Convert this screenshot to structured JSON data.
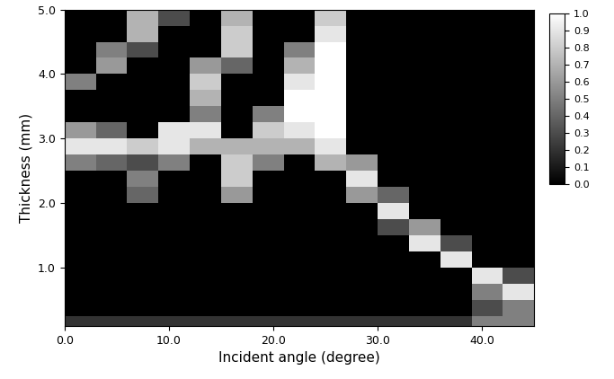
{
  "chart_data": {
    "type": "heatmap",
    "x_label": "Incident angle (degree)",
    "y_label": "Thickness (mm)",
    "x_edges": [
      0,
      3,
      6,
      9,
      12,
      15,
      18,
      21,
      24,
      27,
      30,
      33,
      36,
      39,
      42,
      45
    ],
    "y_edges": [
      0.0,
      0.25,
      0.5,
      0.75,
      1.0,
      1.25,
      1.5,
      1.75,
      2.0,
      2.25,
      2.5,
      2.75,
      3.0,
      3.25,
      3.5,
      3.75,
      4.0,
      4.25,
      4.5,
      4.75,
      5.0
    ],
    "cells": [
      [
        0.2,
        0.2,
        0.2,
        0.2,
        0.2,
        0.2,
        0.2,
        0.2,
        0.2,
        0.2,
        0.2,
        0.2,
        0.2,
        0.5,
        0.5
      ],
      [
        0.0,
        0.0,
        0.0,
        0.0,
        0.0,
        0.0,
        0.0,
        0.0,
        0.0,
        0.0,
        0.0,
        0.0,
        0.0,
        0.3,
        0.5
      ],
      [
        0.0,
        0.0,
        0.0,
        0.0,
        0.0,
        0.0,
        0.0,
        0.0,
        0.0,
        0.0,
        0.0,
        0.0,
        0.0,
        0.5,
        0.9
      ],
      [
        0.0,
        0.0,
        0.0,
        0.0,
        0.0,
        0.0,
        0.0,
        0.0,
        0.0,
        0.0,
        0.0,
        0.0,
        0.0,
        0.9,
        0.3
      ],
      [
        0.0,
        0.0,
        0.0,
        0.0,
        0.0,
        0.0,
        0.0,
        0.0,
        0.0,
        0.0,
        0.0,
        0.0,
        0.9,
        0.0,
        0.0
      ],
      [
        0.0,
        0.0,
        0.0,
        0.0,
        0.0,
        0.0,
        0.0,
        0.0,
        0.0,
        0.0,
        0.0,
        0.9,
        0.3,
        0.0,
        0.0
      ],
      [
        0.0,
        0.0,
        0.0,
        0.0,
        0.0,
        0.0,
        0.0,
        0.0,
        0.0,
        0.0,
        0.3,
        0.6,
        0.0,
        0.0,
        0.0
      ],
      [
        0.0,
        0.0,
        0.0,
        0.0,
        0.0,
        0.0,
        0.0,
        0.0,
        0.0,
        0.0,
        0.9,
        0.0,
        0.0,
        0.0,
        0.0
      ],
      [
        0.0,
        0.0,
        0.4,
        0.0,
        0.0,
        0.6,
        0.0,
        0.0,
        0.0,
        0.6,
        0.4,
        0.0,
        0.0,
        0.0,
        0.0
      ],
      [
        0.0,
        0.0,
        0.5,
        0.0,
        0.0,
        0.8,
        0.0,
        0.0,
        0.0,
        0.9,
        0.0,
        0.0,
        0.0,
        0.0,
        0.0
      ],
      [
        0.5,
        0.4,
        0.3,
        0.5,
        0.0,
        0.8,
        0.5,
        0.0,
        0.7,
        0.6,
        0.0,
        0.0,
        0.0,
        0.0,
        0.0
      ],
      [
        0.9,
        0.9,
        0.8,
        0.9,
        0.7,
        0.7,
        0.7,
        0.7,
        0.9,
        0.0,
        0.0,
        0.0,
        0.0,
        0.0,
        0.0
      ],
      [
        0.6,
        0.4,
        0.0,
        0.9,
        0.9,
        0.0,
        0.8,
        0.9,
        1.0,
        0.0,
        0.0,
        0.0,
        0.0,
        0.0,
        0.0
      ],
      [
        0.0,
        0.0,
        0.0,
        0.0,
        0.5,
        0.0,
        0.5,
        1.0,
        1.0,
        0.0,
        0.0,
        0.0,
        0.0,
        0.0,
        0.0
      ],
      [
        0.0,
        0.0,
        0.0,
        0.0,
        0.7,
        0.0,
        0.0,
        1.0,
        1.0,
        0.0,
        0.0,
        0.0,
        0.0,
        0.0,
        0.0
      ],
      [
        0.5,
        0.0,
        0.0,
        0.0,
        0.8,
        0.0,
        0.0,
        0.9,
        1.0,
        0.0,
        0.0,
        0.0,
        0.0,
        0.0,
        0.0
      ],
      [
        0.0,
        0.6,
        0.0,
        0.0,
        0.6,
        0.4,
        0.0,
        0.7,
        1.0,
        0.0,
        0.0,
        0.0,
        0.0,
        0.0,
        0.0
      ],
      [
        0.0,
        0.5,
        0.3,
        0.0,
        0.0,
        0.8,
        0.0,
        0.5,
        1.0,
        0.0,
        0.0,
        0.0,
        0.0,
        0.0,
        0.0
      ],
      [
        0.0,
        0.0,
        0.7,
        0.0,
        0.0,
        0.8,
        0.0,
        0.0,
        0.9,
        0.0,
        0.0,
        0.0,
        0.0,
        0.0,
        0.0
      ],
      [
        0.0,
        0.0,
        0.7,
        0.3,
        0.0,
        0.7,
        0.0,
        0.0,
        0.8,
        0.0,
        0.0,
        0.0,
        0.0,
        0.0,
        0.0
      ]
    ],
    "xlim": [
      0.0,
      45.0
    ],
    "ylim": [
      0.1,
      5.0
    ],
    "xticks": [
      0.0,
      10.0,
      20.0,
      30.0,
      40.0
    ],
    "yticks": [
      1.0,
      2.0,
      3.0,
      4.0,
      5.0
    ],
    "colorbar": {
      "range": [
        0.0,
        1.0
      ],
      "ticks": [
        0.0,
        0.1,
        0.2,
        0.3,
        0.4,
        0.5,
        0.6,
        0.7,
        0.8,
        0.9,
        1.0
      ]
    }
  }
}
